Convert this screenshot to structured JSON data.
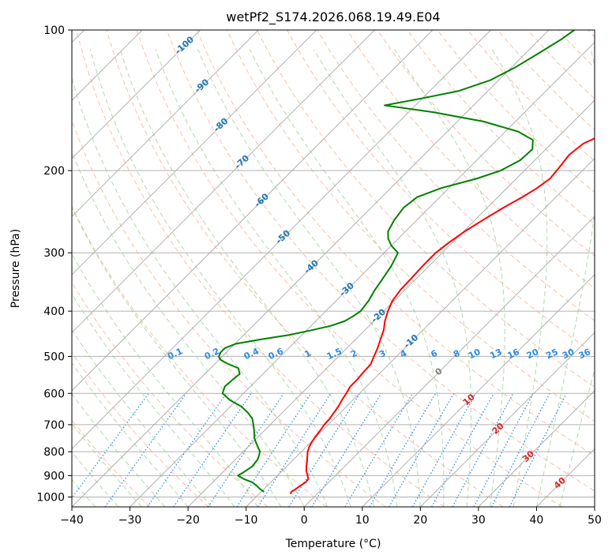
{
  "chart_data": {
    "type": "line",
    "title": "wetPf2_S174.2026.068.19.49.E04",
    "xlabel": "Temperature (°C)",
    "ylabel": "Pressure (hPa)",
    "xlim": [
      -40,
      50
    ],
    "ylim": [
      1050,
      100
    ],
    "skew": 1.0,
    "grid": true,
    "x_ticks": [
      -40,
      -30,
      -20,
      -10,
      0,
      10,
      20,
      30,
      40,
      50
    ],
    "x_tick_labels": [
      "−40",
      "−30",
      "−20",
      "−10",
      "0",
      "10",
      "20",
      "30",
      "40",
      "50"
    ],
    "y_ticks": [
      1000,
      900,
      800,
      700,
      600,
      500,
      400,
      300,
      200,
      100
    ],
    "y_tick_labels": [
      "1000",
      "900",
      "800",
      "700",
      "600",
      "500",
      "400",
      "300",
      "200",
      "100"
    ],
    "dry_adiabat_labels": [
      {
        "temp": -100,
        "pressure": 108,
        "text": "-100"
      },
      {
        "temp": -90,
        "pressure": 132,
        "text": "-90"
      },
      {
        "temp": -80,
        "pressure": 160,
        "text": "-80"
      },
      {
        "temp": -70,
        "pressure": 192,
        "text": "-70"
      },
      {
        "temp": -60,
        "pressure": 232,
        "text": "-60"
      },
      {
        "temp": -50,
        "pressure": 278,
        "text": "-50"
      },
      {
        "temp": -40,
        "pressure": 322,
        "text": "-40"
      },
      {
        "temp": -30,
        "pressure": 360,
        "text": "-30"
      },
      {
        "temp": -20,
        "pressure": 410,
        "text": "-20"
      },
      {
        "temp": -10,
        "pressure": 465,
        "text": "-10"
      },
      {
        "temp": 0,
        "pressure": 540,
        "text": "0"
      },
      {
        "temp": 10,
        "pressure": 620,
        "text": "10"
      },
      {
        "temp": 20,
        "pressure": 715,
        "text": "20"
      },
      {
        "temp": 30,
        "pressure": 820,
        "text": "30"
      },
      {
        "temp": 40,
        "pressure": 935,
        "text": "40"
      }
    ],
    "mixing_ratio_labels": [
      "0.1",
      "0.2",
      "0.4",
      "0.6",
      "1",
      "1.5",
      "2",
      "3",
      "4",
      "6",
      "8",
      "10",
      "13",
      "16",
      "20",
      "25",
      "30",
      "36"
    ],
    "mixing_ratio_label_pressure": 500,
    "series": [
      {
        "name": "Temperature",
        "color": "#ff0000",
        "points": [
          [
            -4.6,
            985
          ],
          [
            -4.8,
            975
          ],
          [
            -4.5,
            960
          ],
          [
            -4.3,
            945
          ],
          [
            -4.0,
            930
          ],
          [
            -4.1,
            915
          ],
          [
            -4.8,
            900
          ],
          [
            -5.8,
            880
          ],
          [
            -6.6,
            860
          ],
          [
            -7.3,
            840
          ],
          [
            -8.1,
            820
          ],
          [
            -8.9,
            800
          ],
          [
            -9.5,
            780
          ],
          [
            -9.9,
            760
          ],
          [
            -10.2,
            740
          ],
          [
            -10.4,
            720
          ],
          [
            -10.7,
            700
          ],
          [
            -10.8,
            680
          ],
          [
            -11.1,
            660
          ],
          [
            -11.4,
            640
          ],
          [
            -11.9,
            620
          ],
          [
            -12.3,
            600
          ],
          [
            -12.8,
            580
          ],
          [
            -12.8,
            560
          ],
          [
            -13.0,
            540
          ],
          [
            -13.1,
            520
          ],
          [
            -13.9,
            500
          ],
          [
            -14.7,
            480
          ],
          [
            -15.7,
            460
          ],
          [
            -16.7,
            440
          ],
          [
            -18.1,
            420
          ],
          [
            -19.3,
            400
          ],
          [
            -20.3,
            380
          ],
          [
            -20.8,
            360
          ],
          [
            -20.9,
            340
          ],
          [
            -21.1,
            320
          ],
          [
            -21.1,
            300
          ],
          [
            -20.6,
            285
          ],
          [
            -19.8,
            270
          ],
          [
            -18.6,
            255
          ],
          [
            -17.2,
            240
          ],
          [
            -15.8,
            228
          ],
          [
            -14.8,
            218
          ],
          [
            -14.2,
            208
          ],
          [
            -14.6,
            195
          ],
          [
            -15.0,
            185
          ],
          [
            -14.5,
            175
          ],
          [
            -12.0,
            165
          ],
          [
            -7.2,
            157
          ],
          [
            -2.0,
            150
          ],
          [
            2.7,
            143
          ],
          [
            6.7,
            136
          ],
          [
            10.2,
            130
          ],
          [
            11.8,
            124
          ],
          [
            12.1,
            118
          ],
          [
            13.5,
            113
          ],
          [
            16.0,
            108
          ],
          [
            18.4,
            104
          ],
          [
            20.6,
            100
          ]
        ]
      },
      {
        "name": "Dewpoint",
        "color": "#008000",
        "points": [
          [
            -9.5,
            975
          ],
          [
            -10.8,
            960
          ],
          [
            -11.9,
            945
          ],
          [
            -13.2,
            930
          ],
          [
            -15.2,
            915
          ],
          [
            -16.8,
            900
          ],
          [
            -16.4,
            885
          ],
          [
            -15.9,
            860
          ],
          [
            -16.2,
            830
          ],
          [
            -17.1,
            800
          ],
          [
            -18.7,
            775
          ],
          [
            -20.3,
            750
          ],
          [
            -21.8,
            720
          ],
          [
            -22.9,
            700
          ],
          [
            -24.1,
            680
          ],
          [
            -25.9,
            660
          ],
          [
            -28.1,
            640
          ],
          [
            -31.2,
            620
          ],
          [
            -33.6,
            600
          ],
          [
            -34.4,
            580
          ],
          [
            -34.2,
            560
          ],
          [
            -34.0,
            545
          ],
          [
            -35.2,
            530
          ],
          [
            -37.9,
            518
          ],
          [
            -39.8,
            508
          ],
          [
            -40.6,
            500
          ],
          [
            -41.0,
            490
          ],
          [
            -41.0,
            480
          ],
          [
            -39.9,
            470
          ],
          [
            -36.4,
            460
          ],
          [
            -32.3,
            450
          ],
          [
            -29.3,
            440
          ],
          [
            -26.6,
            430
          ],
          [
            -25.0,
            420
          ],
          [
            -24.4,
            410
          ],
          [
            -24.0,
            400
          ],
          [
            -24.4,
            380
          ],
          [
            -25.2,
            360
          ],
          [
            -25.8,
            340
          ],
          [
            -26.5,
            320
          ],
          [
            -27.6,
            300
          ],
          [
            -29.9,
            290
          ],
          [
            -31.7,
            280
          ],
          [
            -33.0,
            270
          ],
          [
            -33.9,
            255
          ],
          [
            -34.4,
            240
          ],
          [
            -33.9,
            228
          ],
          [
            -31.3,
            218
          ],
          [
            -26.8,
            208
          ],
          [
            -24.1,
            200
          ],
          [
            -22.5,
            190
          ],
          [
            -22.3,
            180
          ],
          [
            -23.8,
            172
          ],
          [
            -27.8,
            165
          ],
          [
            -35.5,
            157
          ],
          [
            -45.7,
            150
          ],
          [
            -55.3,
            145
          ],
          [
            -50.0,
            140
          ],
          [
            -45.0,
            135
          ],
          [
            -41.4,
            128
          ],
          [
            -39.3,
            120
          ],
          [
            -37.9,
            113
          ],
          [
            -36.3,
            105
          ],
          [
            -35.6,
            100
          ]
        ]
      }
    ]
  }
}
